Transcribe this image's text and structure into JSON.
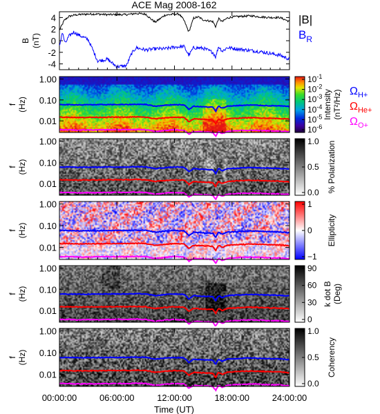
{
  "title": "ACE Mag 2008-162",
  "chart_data": [
    {
      "type": "line",
      "ylabel": "B (nT)",
      "ylabel_parts": [
        "B",
        "(nT)"
      ],
      "xlim": [
        0,
        24
      ],
      "ylim": [
        -5,
        5
      ],
      "yticks": [
        4,
        2,
        0,
        -2,
        -4
      ],
      "legend": [
        {
          "name": "|B|",
          "color": "#000000"
        },
        {
          "name": "B_R",
          "color": "#0000ff",
          "base": "B",
          "sub": "R"
        }
      ],
      "series": [
        {
          "name": "|B|",
          "color": "#000000",
          "x": [
            0,
            0.5,
            1,
            1.5,
            2,
            3,
            4,
            5,
            6,
            7,
            8,
            9,
            9.5,
            10,
            11,
            12,
            12.5,
            13,
            13.5,
            14,
            14.5,
            15,
            16,
            16.3,
            16.6,
            17,
            17.5,
            18,
            19,
            20,
            21,
            22,
            23,
            24
          ],
          "y": [
            1.8,
            3.5,
            4.2,
            4.4,
            4.5,
            4.6,
            4.6,
            4.5,
            4.5,
            4.5,
            4.7,
            4.6,
            3.8,
            3.2,
            4.4,
            4.6,
            4.6,
            3.5,
            1.5,
            3.9,
            4.1,
            3.6,
            3.3,
            2.4,
            3.8,
            3.3,
            3.9,
            4.1,
            4.2,
            4.3,
            4.1,
            4.0,
            4.0,
            3.3
          ]
        },
        {
          "name": "B_R",
          "color": "#0000ff",
          "x": [
            0,
            0.3,
            0.6,
            1,
            1.5,
            2,
            3,
            4,
            5,
            6,
            7,
            7.5,
            8,
            9,
            10,
            11,
            12,
            13,
            13.5,
            14,
            15,
            16,
            16.3,
            16.6,
            17,
            17.5,
            18,
            19,
            20,
            21,
            22,
            23,
            24
          ],
          "y": [
            -1.0,
            1.5,
            -0.5,
            0.8,
            1.5,
            1.0,
            0.2,
            -3.5,
            -3.2,
            -4.5,
            -4.3,
            -2.3,
            -1.2,
            -1.6,
            -1.4,
            -1.4,
            -1.1,
            -1.0,
            -2.5,
            -1.2,
            -1.3,
            -2.0,
            -2.8,
            -1.0,
            -1.8,
            -1.2,
            -1.3,
            -1.5,
            -1.7,
            -1.9,
            -2.2,
            -2.5,
            -3.2
          ]
        }
      ]
    },
    {
      "type": "heatmap",
      "ylabel_parts": [
        "f",
        "(Hz)"
      ],
      "yscale": "log",
      "ylim": [
        0.003,
        1.3
      ],
      "yticks": [
        "1.00",
        "0.10",
        "0.01"
      ],
      "colorbar": {
        "type": "rainbow",
        "labels": [
          "10",
          "10",
          "10",
          "10",
          "10",
          "10"
        ],
        "exponents": [
          "-1",
          "-2",
          "-3",
          "-4",
          "-5",
          "-6"
        ],
        "title": "Intensity",
        "title2": "(nT²/Hz)"
      },
      "legend": [
        {
          "base": "Ω",
          "sub": "H+",
          "color": "#0000ff"
        },
        {
          "base": "Ω",
          "sub": "He+",
          "color": "#ff0000"
        },
        {
          "base": "Ω",
          "sub": "O+",
          "color": "#ff00ff"
        }
      ]
    },
    {
      "type": "heatmap",
      "ylabel_parts": [
        "f",
        "(Hz)"
      ],
      "yscale": "log",
      "yticks": [
        "1.00",
        "0.10",
        "0.01"
      ],
      "colorbar": {
        "type": "gray",
        "labels": [
          "1.0",
          "0.5",
          "0.0"
        ],
        "title": "% Polarization"
      }
    },
    {
      "type": "heatmap",
      "ylabel_parts": [
        "f",
        "(Hz)"
      ],
      "yscale": "log",
      "yticks": [
        "1.00",
        "0.10",
        "0.01"
      ],
      "colorbar": {
        "type": "bwr",
        "labels": [
          "1",
          "0",
          "−1"
        ],
        "title": "Ellipticity"
      }
    },
    {
      "type": "heatmap",
      "ylabel_parts": [
        "f",
        "(Hz)"
      ],
      "yscale": "log",
      "yticks": [
        "1.00",
        "0.10",
        "0.01"
      ],
      "colorbar": {
        "type": "gray",
        "labels": [
          "90",
          "60",
          "30",
          "0"
        ],
        "title": "k dot B",
        "title2": "(Deg)"
      }
    },
    {
      "type": "heatmap",
      "ylabel_parts": [
        "f",
        "(Hz)"
      ],
      "yscale": "log",
      "yticks": [
        "1.00",
        "0.10",
        "0.01"
      ],
      "colorbar": {
        "type": "gray",
        "labels": [
          "1.0",
          "0.5",
          "0.0"
        ],
        "title": "Coherency"
      }
    }
  ],
  "gyro_lines": {
    "x": [
      0,
      1,
      2,
      3,
      4,
      5,
      6,
      7,
      8,
      9,
      10,
      11,
      12,
      13,
      13.5,
      14,
      15,
      16,
      16.3,
      16.6,
      17,
      17.5,
      18,
      19,
      20,
      21,
      22,
      23,
      24
    ],
    "H+": [
      0.06,
      0.06,
      0.058,
      0.059,
      0.059,
      0.06,
      0.06,
      0.06,
      0.062,
      0.061,
      0.05,
      0.056,
      0.06,
      0.058,
      0.035,
      0.05,
      0.047,
      0.045,
      0.028,
      0.05,
      0.04,
      0.05,
      0.052,
      0.055,
      0.057,
      0.055,
      0.053,
      0.052,
      0.048
    ],
    "He+": [
      0.015,
      0.015,
      0.0145,
      0.0148,
      0.0148,
      0.015,
      0.015,
      0.015,
      0.0155,
      0.015,
      0.0125,
      0.014,
      0.015,
      0.0145,
      0.009,
      0.0125,
      0.0118,
      0.0112,
      0.007,
      0.0125,
      0.01,
      0.0125,
      0.013,
      0.0138,
      0.0142,
      0.0138,
      0.0133,
      0.013,
      0.012
    ],
    "O+": [
      0.0038,
      0.0038,
      0.0036,
      0.0037,
      0.0037,
      0.0038,
      0.0038,
      0.0038,
      0.0039,
      0.0038,
      0.0031,
      0.0035,
      0.0038,
      0.0036,
      0.0023,
      0.0031,
      0.003,
      0.0028,
      0.0018,
      0.0031,
      0.0025,
      0.0031,
      0.0033,
      0.0035,
      0.0036,
      0.0035,
      0.0033,
      0.0033,
      0.003
    ]
  },
  "xaxis": {
    "label": "Time (UT)",
    "ticks": [
      "00:00:00",
      "06:00:00",
      "12:00:00",
      "18:00:00",
      "24:00:00"
    ],
    "tick_values": [
      0,
      6,
      12,
      18,
      24
    ]
  },
  "colors": {
    "hplus": "#0000ff",
    "heplus": "#ff0000",
    "oplus": "#ff00ff",
    "bmag": "#000000",
    "br": "#0000ff"
  }
}
